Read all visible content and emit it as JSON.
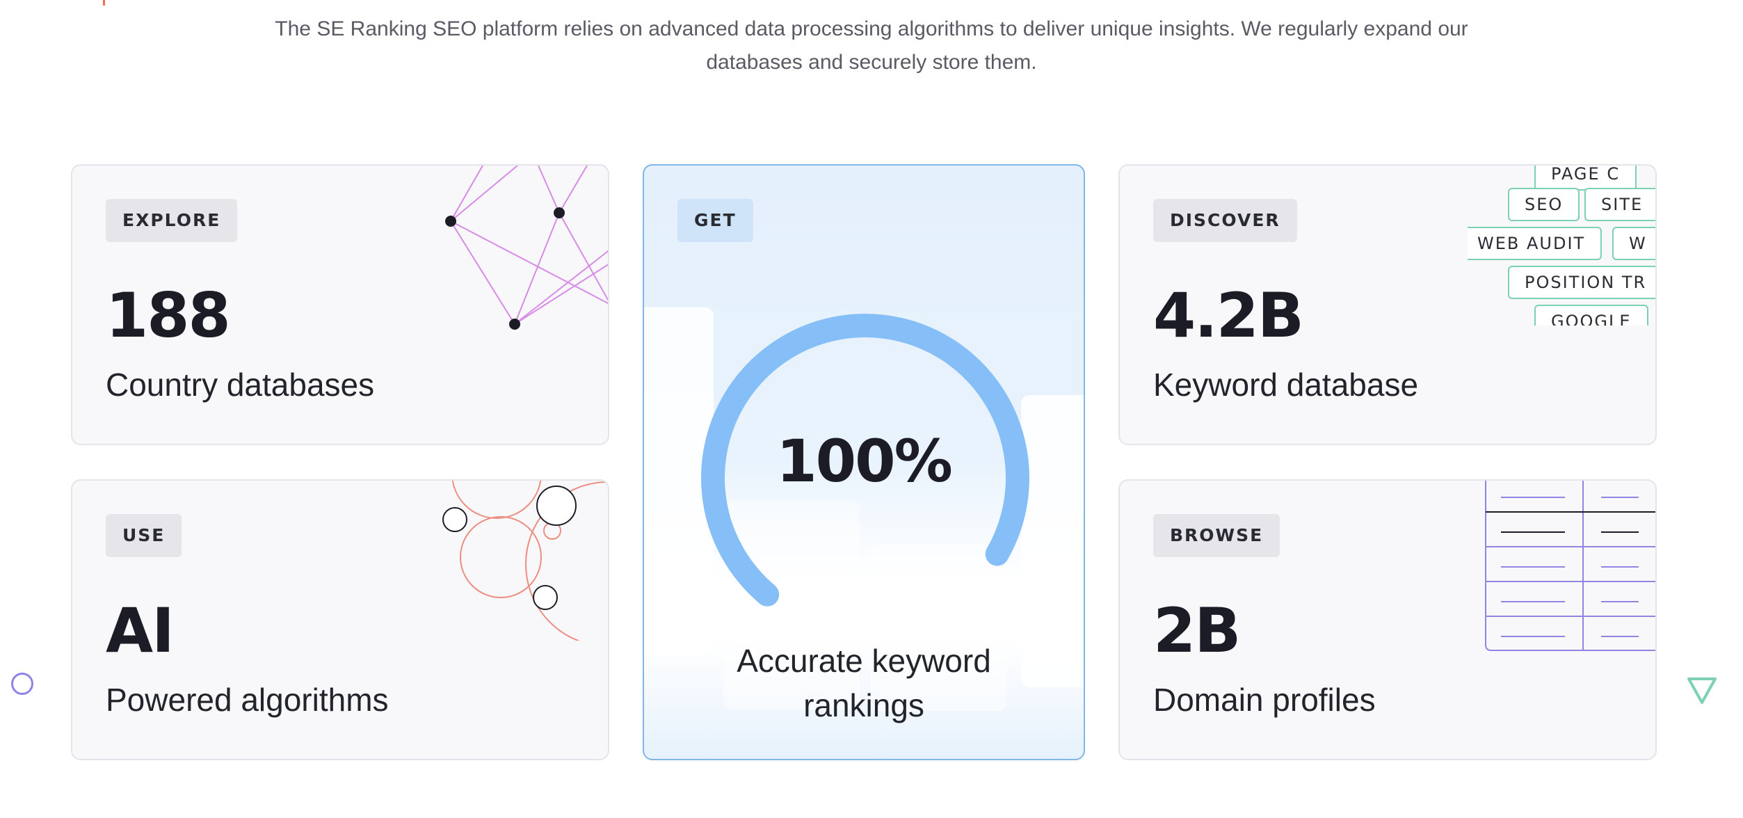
{
  "intro": {
    "text": "The SE Ranking SEO platform relies on advanced data processing algorithms to deliver unique insights. We regularly expand our databases and securely store them."
  },
  "cards": {
    "explore": {
      "tag": "EXPLORE",
      "value": "188",
      "label": "Country databases"
    },
    "use": {
      "tag": "USE",
      "value": "AI",
      "label": "Powered algorithms"
    },
    "get": {
      "tag": "GET",
      "value": "100%",
      "label": "Accurate keyword rankings",
      "gauge_fraction": 1.0
    },
    "discover": {
      "tag": "DISCOVER",
      "value": "4.2B",
      "label": "Keyword database",
      "keywords": [
        "PAGE C",
        "SEO",
        "SITE",
        "WEB AUDIT",
        "W",
        "POSITION TR",
        "GOOGLE"
      ]
    },
    "browse": {
      "tag": "BROWSE",
      "value": "2B",
      "label": "Domain profiles"
    }
  },
  "colors": {
    "accent_blue": "#86bff7",
    "network_lines": "#d78be6",
    "bubbles": "#ec8e80",
    "keyword_border": "#7ed0b3",
    "table_lines": "#8f86e2"
  },
  "icons": [
    "network-graph-icon",
    "bubble-cluster-icon",
    "table-grid-icon",
    "circle-icon",
    "triangle-icon"
  ]
}
